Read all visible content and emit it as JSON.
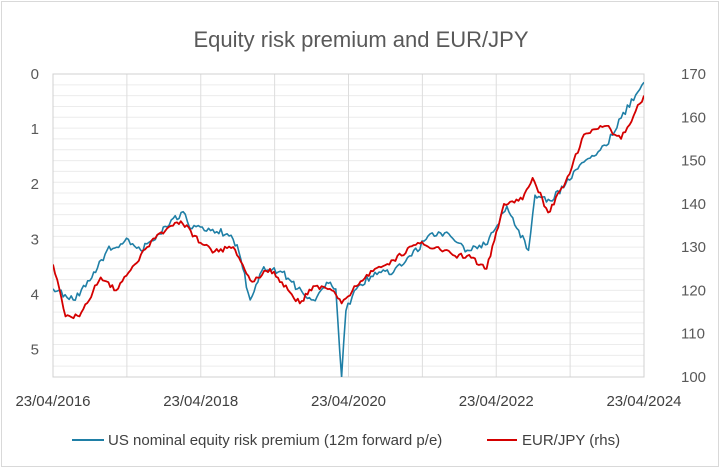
{
  "chart_data": {
    "type": "line",
    "title": "Equity risk premium and EUR/JPY",
    "xlabel": "",
    "x_ticks": [
      "23/04/2016",
      "23/04/2018",
      "23/04/2020",
      "23/04/2022",
      "23/04/2024"
    ],
    "x_range": [
      "2016-04-23",
      "2024-04-23"
    ],
    "y_left": {
      "ylabel": "",
      "range": [
        0,
        5.5
      ],
      "inverted": true,
      "ticks": [
        "0",
        "1",
        "2",
        "3",
        "4",
        "5"
      ]
    },
    "y_right": {
      "ylabel": "",
      "range": [
        100,
        170
      ],
      "ticks": [
        "100",
        "110",
        "120",
        "130",
        "140",
        "150",
        "160",
        "170"
      ]
    },
    "grid": true,
    "legend_position": "bottom",
    "series": [
      {
        "name": "US nominal equity risk premium (12m forward p/e)",
        "axis": "left",
        "color": "#1f7fa6",
        "x": [
          "2016-04-23",
          "2016-08-01",
          "2016-11-01",
          "2017-01-15",
          "2017-05-01",
          "2017-07-01",
          "2017-10-01",
          "2018-01-26",
          "2018-03-01",
          "2018-06-01",
          "2018-09-01",
          "2018-10-20",
          "2018-12-24",
          "2019-03-01",
          "2019-06-01",
          "2019-08-15",
          "2019-11-01",
          "2020-01-15",
          "2020-02-20",
          "2020-03-20",
          "2020-04-10",
          "2020-06-01",
          "2020-09-01",
          "2020-12-01",
          "2021-03-01",
          "2021-06-01",
          "2021-09-01",
          "2021-12-01",
          "2022-03-01",
          "2022-06-15",
          "2022-09-30",
          "2022-11-01",
          "2023-01-15",
          "2023-04-01",
          "2023-07-01",
          "2023-10-20",
          "2024-01-01",
          "2024-04-23"
        ],
        "values": [
          3.9,
          4.1,
          3.7,
          3.2,
          3.0,
          3.2,
          2.9,
          2.5,
          2.8,
          2.8,
          2.9,
          3.1,
          4.1,
          3.5,
          3.6,
          3.9,
          4.1,
          3.8,
          3.9,
          5.5,
          4.3,
          3.9,
          3.6,
          3.6,
          3.3,
          2.9,
          2.9,
          3.2,
          3.1,
          2.4,
          3.2,
          2.2,
          2.3,
          2.0,
          1.6,
          1.3,
          0.8,
          0.15
        ]
      },
      {
        "name": "EUR/JPY (rhs)",
        "axis": "right",
        "color": "#d40000",
        "x": [
          "2016-04-23",
          "2016-06-24",
          "2016-09-01",
          "2016-12-15",
          "2017-03-01",
          "2017-06-01",
          "2017-09-01",
          "2018-01-15",
          "2018-04-23",
          "2018-07-01",
          "2018-10-01",
          "2019-01-03",
          "2019-04-01",
          "2019-08-26",
          "2019-11-01",
          "2020-02-01",
          "2020-03-20",
          "2020-06-01",
          "2020-09-01",
          "2020-12-01",
          "2021-04-01",
          "2021-07-01",
          "2021-10-01",
          "2021-12-01",
          "2022-03-07",
          "2022-06-01",
          "2022-09-01",
          "2022-10-20",
          "2023-01-05",
          "2023-04-01",
          "2023-07-01",
          "2023-10-20",
          "2024-01-01",
          "2024-04-23"
        ],
        "values": [
          126,
          114,
          114,
          123,
          120,
          126,
          132,
          136,
          131,
          129,
          130,
          122,
          125,
          117,
          121,
          120,
          117,
          121,
          125,
          127,
          131,
          130,
          128,
          128,
          125,
          140,
          141,
          146,
          138,
          145,
          156,
          158,
          155,
          165
        ]
      }
    ]
  }
}
